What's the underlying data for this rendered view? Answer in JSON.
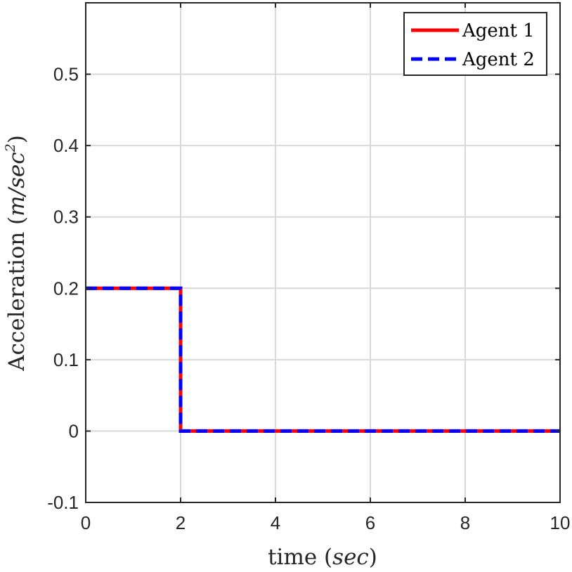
{
  "chart_data": {
    "type": "line",
    "title": "",
    "xlabel": {
      "prefix": "time (",
      "unit": "sec",
      "suffix": ")"
    },
    "ylabel": {
      "prefix": "Acceleration (",
      "unit": "m/sec",
      "power": "2",
      "suffix": ")"
    },
    "xlim": [
      0,
      10
    ],
    "ylim": [
      -0.1,
      0.6
    ],
    "xticks": [
      0,
      2,
      4,
      6,
      8,
      10
    ],
    "xtick_labels": [
      "0",
      "2",
      "4",
      "6",
      "8",
      "10"
    ],
    "yticks": [
      -0.1,
      0,
      0.1,
      0.2,
      0.3,
      0.4,
      0.5
    ],
    "ytick_labels": [
      "-0.1",
      "0",
      "0.1",
      "0.2",
      "0.3",
      "0.4",
      "0.5"
    ],
    "grid": true,
    "legend_position": "top-right",
    "series": [
      {
        "name": "Agent 1",
        "color": "#ff0000",
        "style": "solid",
        "x": [
          0,
          2,
          2,
          10
        ],
        "y": [
          0.2,
          0.2,
          0,
          0
        ]
      },
      {
        "name": "Agent 2",
        "color": "#0000ff",
        "style": "dashed",
        "x": [
          0,
          2,
          2,
          10
        ],
        "y": [
          0.2,
          0.2,
          0,
          0
        ]
      }
    ]
  }
}
